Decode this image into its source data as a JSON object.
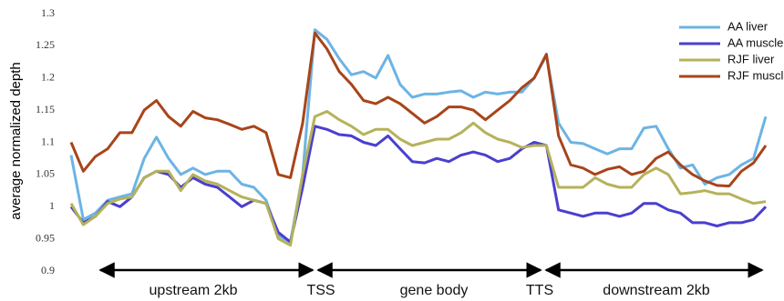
{
  "chart_data": {
    "type": "line",
    "ylabel": "average normalized depth",
    "categories": [
      null,
      null,
      null,
      null,
      null,
      null,
      null,
      null,
      null,
      null,
      null,
      null,
      null,
      null,
      null,
      null,
      null,
      null,
      null,
      null,
      null,
      null,
      null,
      null,
      null,
      null,
      null,
      null,
      null,
      null,
      null,
      null,
      null,
      null,
      null,
      null,
      null,
      null,
      null,
      null,
      null,
      null,
      null,
      null,
      null,
      null,
      null,
      null,
      null,
      null,
      null,
      null,
      null,
      null,
      null,
      null,
      null,
      null
    ],
    "series": [
      {
        "name": "AA liver",
        "color": "#6cb4e4",
        "values": [
          1.08,
          0.98,
          0.99,
          1.01,
          1.015,
          1.02,
          1.075,
          1.108,
          1.075,
          1.05,
          1.06,
          1.05,
          1.055,
          1.055,
          1.035,
          1.03,
          1.01,
          0.955,
          0.945,
          1.05,
          1.275,
          1.26,
          1.23,
          1.205,
          1.21,
          1.2,
          1.235,
          1.19,
          1.17,
          1.175,
          1.175,
          1.178,
          1.18,
          1.17,
          1.178,
          1.175,
          1.178,
          1.178,
          1.2,
          1.235,
          1.13,
          1.1,
          1.098,
          1.09,
          1.082,
          1.09,
          1.09,
          1.122,
          1.125,
          1.09,
          1.06,
          1.065,
          1.035,
          1.045,
          1.05,
          1.065,
          1.075,
          1.14
        ]
      },
      {
        "name": "AA muscle",
        "color": "#4a3fd0",
        "values": [
          1.0,
          0.975,
          0.985,
          1.008,
          1.0,
          1.015,
          1.045,
          1.055,
          1.05,
          1.03,
          1.045,
          1.035,
          1.03,
          1.015,
          1.0,
          1.01,
          1.005,
          0.96,
          0.945,
          1.03,
          1.125,
          1.12,
          1.112,
          1.11,
          1.1,
          1.095,
          1.11,
          1.09,
          1.07,
          1.068,
          1.075,
          1.07,
          1.08,
          1.085,
          1.08,
          1.07,
          1.075,
          1.09,
          1.1,
          1.095,
          0.995,
          0.99,
          0.985,
          0.99,
          0.99,
          0.985,
          0.99,
          1.005,
          1.005,
          0.995,
          0.99,
          0.975,
          0.975,
          0.97,
          0.975,
          0.975,
          0.98,
          1.0
        ]
      },
      {
        "name": "RJF liver",
        "color": "#b5b25a",
        "values": [
          1.005,
          0.972,
          0.985,
          1.005,
          1.012,
          1.015,
          1.045,
          1.055,
          1.055,
          1.025,
          1.05,
          1.04,
          1.035,
          1.025,
          1.015,
          1.01,
          1.005,
          0.95,
          0.94,
          1.05,
          1.14,
          1.148,
          1.135,
          1.125,
          1.112,
          1.12,
          1.12,
          1.105,
          1.095,
          1.1,
          1.105,
          1.105,
          1.115,
          1.13,
          1.115,
          1.105,
          1.1,
          1.092,
          1.095,
          1.095,
          1.03,
          1.03,
          1.03,
          1.045,
          1.035,
          1.03,
          1.03,
          1.05,
          1.06,
          1.05,
          1.02,
          1.022,
          1.025,
          1.02,
          1.02,
          1.012,
          1.005,
          1.008
        ]
      },
      {
        "name": "RJF muscle",
        "color": "#a8441a",
        "values": [
          1.1,
          1.055,
          1.078,
          1.09,
          1.115,
          1.115,
          1.15,
          1.165,
          1.14,
          1.125,
          1.148,
          1.138,
          1.135,
          1.128,
          1.12,
          1.125,
          1.115,
          1.05,
          1.045,
          1.13,
          1.27,
          1.245,
          1.21,
          1.19,
          1.165,
          1.16,
          1.17,
          1.16,
          1.145,
          1.13,
          1.14,
          1.155,
          1.155,
          1.15,
          1.135,
          1.15,
          1.165,
          1.185,
          1.2,
          1.237,
          1.11,
          1.065,
          1.06,
          1.05,
          1.058,
          1.062,
          1.05,
          1.055,
          1.075,
          1.085,
          1.065,
          1.05,
          1.04,
          1.033,
          1.032,
          1.055,
          1.068,
          1.095
        ]
      }
    ],
    "ylim": [
      0.9,
      1.3
    ],
    "yticks": [
      0.9,
      0.95,
      1,
      1.05,
      1.1,
      1.15,
      1.2,
      1.25,
      1.3
    ],
    "grid": false,
    "legend": "upper right",
    "annotations": [
      "upstream 2kb",
      "TSS",
      "gene body",
      "TTS",
      "downstream 2kb"
    ]
  }
}
